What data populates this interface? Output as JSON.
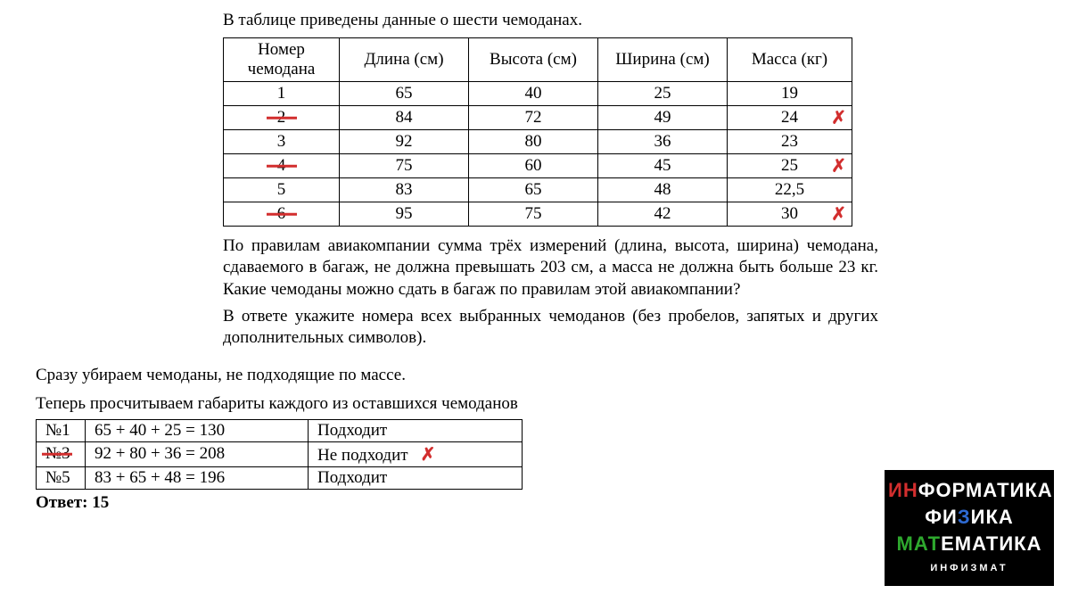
{
  "intro": "В таблице приведены данные о шести чемоданах.",
  "table": {
    "headers": [
      "Номер чемодана",
      "Длина (см)",
      "Высота (см)",
      "Ширина (см)",
      "Масса (кг)"
    ],
    "rows": [
      {
        "num": "1",
        "len": "65",
        "h": "40",
        "w": "25",
        "m": "19",
        "struck": false,
        "mx": false
      },
      {
        "num": "2",
        "len": "84",
        "h": "72",
        "w": "49",
        "m": "24",
        "struck": true,
        "mx": true
      },
      {
        "num": "3",
        "len": "92",
        "h": "80",
        "w": "36",
        "m": "23",
        "struck": false,
        "mx": false
      },
      {
        "num": "4",
        "len": "75",
        "h": "60",
        "w": "45",
        "m": "25",
        "struck": true,
        "mx": true
      },
      {
        "num": "5",
        "len": "83",
        "h": "65",
        "w": "48",
        "m": "22,5",
        "struck": false,
        "mx": false
      },
      {
        "num": "6",
        "len": "95",
        "h": "75",
        "w": "42",
        "m": "30",
        "struck": true,
        "mx": true
      }
    ]
  },
  "rules1": "По правилам авиакомпании сумма трёх измерений (длина, высота, ширина) чемодана, сдаваемого в багаж, не должна превышать 203 см, а масса не должна быть больше 23 кг. Какие чемоданы можно сдать в багаж по правилам этой авиакомпании?",
  "rules2": "В ответе укажите номера всех выбранных чемоданов (без пробелов, запятых и других дополнительных символов).",
  "step1": "Сразу убираем чемоданы, не подходящие по массе.",
  "step2": "Теперь просчитываем габариты каждого из оставшихся чемоданов",
  "calc": {
    "rows": [
      {
        "num": "№1",
        "expr": "65 + 40 + 25 = 130",
        "res": "Подходит",
        "struck": false,
        "x": false
      },
      {
        "num": "№3",
        "expr": "92 + 80 + 36 = 208",
        "res": "Не подходит",
        "struck": true,
        "x": true
      },
      {
        "num": "№5",
        "expr": "83 + 65 + 48 = 196",
        "res": "Подходит",
        "struck": false,
        "x": false
      }
    ]
  },
  "answer": "Ответ: 15",
  "logo": {
    "l1a": "ИН",
    "l1b": "ФОР",
    "l1c": "МАТИКА",
    "l2a": "ФИ",
    "l2b": "З",
    "l2c": "ИКА",
    "l3a": "МАТ",
    "l3b": "Е",
    "l3c": "МАТИКА",
    "l4": "ИНФИЗМАТ"
  },
  "colors": {
    "red": "#d22e2e",
    "black": "#000000",
    "white": "#ffffff"
  }
}
